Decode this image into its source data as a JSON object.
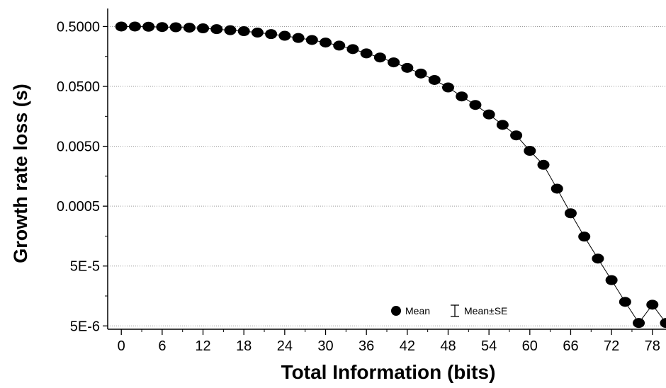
{
  "chart_data": {
    "type": "line",
    "title": "",
    "xlabel": "Total Information (bits)",
    "ylabel": "Growth rate loss (s)",
    "x_scale": "linear",
    "y_scale": "log",
    "xlim": [
      -2,
      80
    ],
    "ylim": [
      4.4e-06,
      1.0
    ],
    "x_ticks": [
      0,
      6,
      12,
      18,
      24,
      30,
      36,
      42,
      48,
      54,
      60,
      66,
      72,
      78
    ],
    "x_tick_labels": [
      "0",
      "6",
      "12",
      "18",
      "24",
      "30",
      "36",
      "42",
      "48",
      "54",
      "60",
      "66",
      "72",
      "78"
    ],
    "y_ticks": [
      0.5,
      0.05,
      0.005,
      0.0005,
      5e-05,
      5e-06
    ],
    "y_tick_labels": [
      "0.5000",
      "0.0500",
      "0.0050",
      "0.0005",
      "5E-5",
      "5E-6"
    ],
    "grid": "horizontal dotted",
    "legend": {
      "placement": "bottom-center",
      "mean_label": "Mean",
      "se_label": "Mean±SE"
    },
    "series": [
      {
        "name": "Mean",
        "x": [
          0,
          2,
          4,
          6,
          8,
          10,
          12,
          14,
          16,
          18,
          20,
          22,
          24,
          26,
          28,
          30,
          32,
          34,
          36,
          38,
          40,
          42,
          44,
          46,
          48,
          50,
          52,
          54,
          56,
          58,
          60,
          62,
          64,
          66,
          68,
          70,
          72,
          74,
          76,
          78,
          80
        ],
        "y": [
          0.5,
          0.5,
          0.496,
          0.49,
          0.486,
          0.478,
          0.466,
          0.452,
          0.434,
          0.418,
          0.396,
          0.374,
          0.35,
          0.322,
          0.298,
          0.27,
          0.24,
          0.21,
          0.178,
          0.152,
          0.126,
          0.102,
          0.082,
          0.064,
          0.048,
          0.034,
          0.0245,
          0.017,
          0.0114,
          0.0076,
          0.0042,
          0.00245,
          0.00098,
          0.00038,
          0.000155,
          6.66e-05,
          2.91e-05,
          1.26e-05,
          5.6e-06,
          1.13e-05,
          5.6e-06
        ]
      }
    ]
  }
}
